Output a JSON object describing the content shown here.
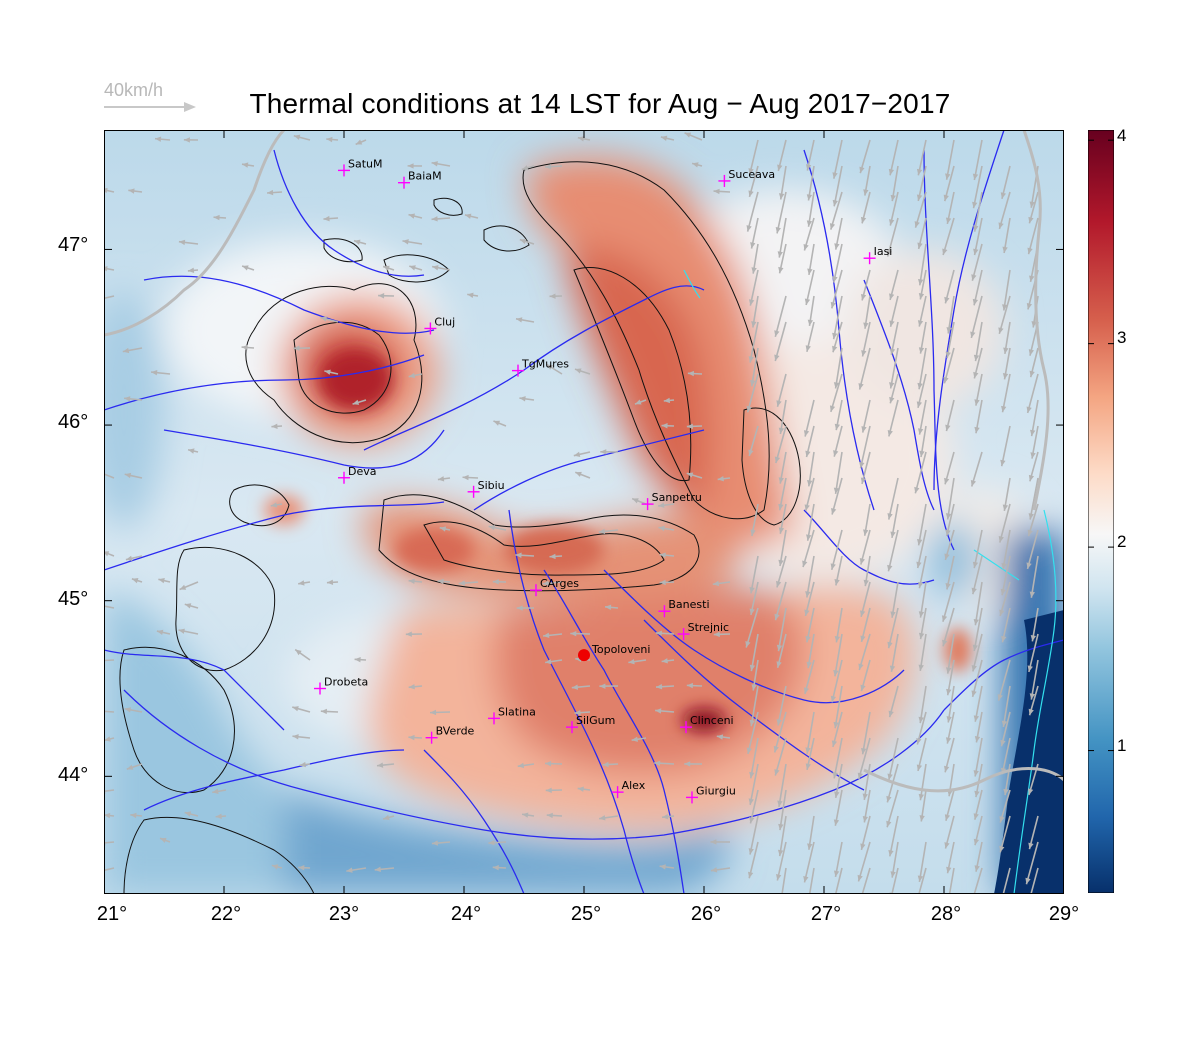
{
  "title": "Thermal conditions at 14 LST for Aug − Aug  2017−2017",
  "wind_legend": {
    "label": "40km/h"
  },
  "axes": {
    "lon_ticks": [
      "21°",
      "22°",
      "23°",
      "24°",
      "25°",
      "26°",
      "27°",
      "28°",
      "29°"
    ],
    "lat_ticks": [
      "47°",
      "46°",
      "45°",
      "44°"
    ],
    "lon_range": [
      21,
      29
    ],
    "lat_range": [
      43.33,
      47.68
    ]
  },
  "colorbar": {
    "ticks": [
      "4",
      "3",
      "2",
      "1"
    ],
    "range": [
      0.3,
      4.05
    ],
    "colors": [
      "#07306b",
      "#2166ac",
      "#4393c3",
      "#92c5de",
      "#d1e5f0",
      "#f7f7f7",
      "#fddbc7",
      "#f4a582",
      "#d6604d",
      "#b2182b",
      "#67001f"
    ]
  },
  "cities": [
    {
      "name": "SatuM",
      "lon": 23.0,
      "lat": 47.45
    },
    {
      "name": "BaiaM",
      "lon": 23.5,
      "lat": 47.38
    },
    {
      "name": "Suceava",
      "lon": 26.17,
      "lat": 47.39
    },
    {
      "name": "Iasi",
      "lon": 27.38,
      "lat": 46.95
    },
    {
      "name": "Cluj",
      "lon": 23.72,
      "lat": 46.55
    },
    {
      "name": "TgMures",
      "lon": 24.45,
      "lat": 46.31
    },
    {
      "name": "Deva",
      "lon": 23.0,
      "lat": 45.7
    },
    {
      "name": "Sibiu",
      "lon": 24.08,
      "lat": 45.62
    },
    {
      "name": "Sanpetru",
      "lon": 25.53,
      "lat": 45.55
    },
    {
      "name": "CArges",
      "lon": 24.6,
      "lat": 45.06
    },
    {
      "name": "Banesti",
      "lon": 25.67,
      "lat": 44.94
    },
    {
      "name": "Strejnic",
      "lon": 25.83,
      "lat": 44.81
    },
    {
      "name": "Drobeta",
      "lon": 22.8,
      "lat": 44.5
    },
    {
      "name": "Slatina",
      "lon": 24.25,
      "lat": 44.33
    },
    {
      "name": "SilGum",
      "lon": 24.9,
      "lat": 44.28
    },
    {
      "name": "Clinceni",
      "lon": 25.85,
      "lat": 44.28
    },
    {
      "name": "BVerde",
      "lon": 23.73,
      "lat": 44.22
    },
    {
      "name": "Alex",
      "lon": 25.28,
      "lat": 43.91
    },
    {
      "name": "Giurgiu",
      "lon": 25.9,
      "lat": 43.88
    }
  ],
  "station": {
    "name": "Topoloveni",
    "lon": 25.0,
    "lat": 44.69,
    "color": "#ee0000"
  },
  "colors": {
    "rivers": "#2a2af0",
    "coast": "#33e0ee",
    "wind": "#b4b4b4",
    "city_marker": "#ff00ff",
    "border": "#bbbbbb"
  }
}
